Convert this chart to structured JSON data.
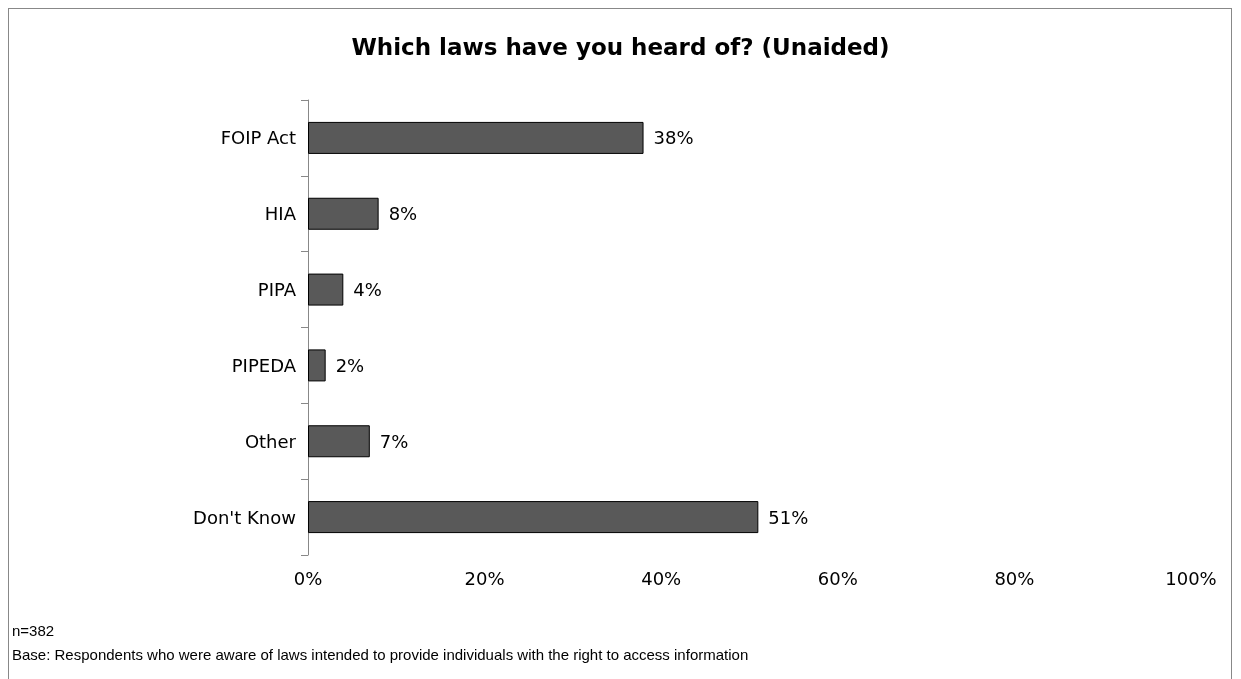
{
  "chart_data": {
    "type": "bar",
    "orientation": "horizontal",
    "title": "Which laws have you heard of? (Unaided)",
    "categories": [
      "FOIP Act",
      "HIA",
      "PIPA",
      "PIPEDA",
      "Other",
      "Don't Know"
    ],
    "values": [
      38,
      8,
      4,
      2,
      7,
      51
    ],
    "value_labels": [
      "38%",
      "8%",
      "4%",
      "2%",
      "7%",
      "51%"
    ],
    "color": "#595959",
    "xlim": [
      0,
      100
    ],
    "xticks": [
      {
        "value": 0,
        "label": "0%"
      },
      {
        "value": 20,
        "label": "20%"
      },
      {
        "value": 40,
        "label": "40%"
      },
      {
        "value": 60,
        "label": "60%"
      },
      {
        "value": 80,
        "label": "80%"
      },
      {
        "value": 100,
        "label": "100%"
      }
    ],
    "annotations": [
      "n=382",
      "Base: Respondents who were aware of laws intended to provide individuals with the right to access information"
    ]
  }
}
